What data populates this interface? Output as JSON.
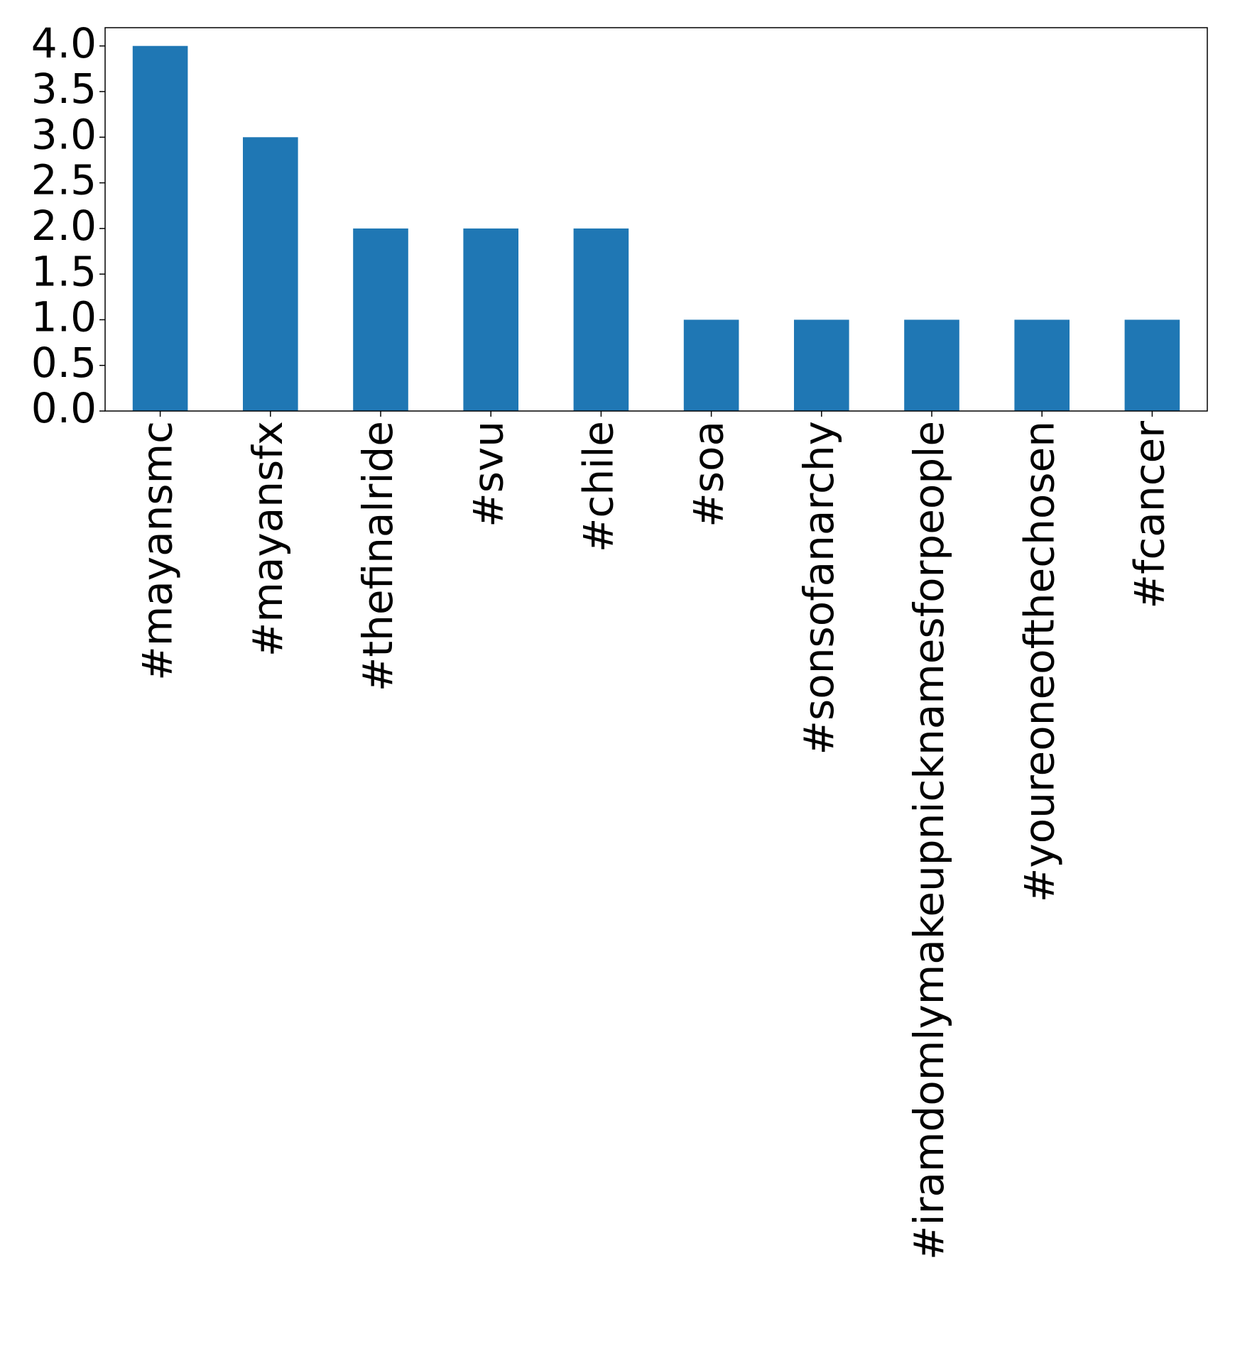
{
  "chart_data": {
    "type": "bar",
    "title": "",
    "xlabel": "",
    "ylabel": "",
    "categories": [
      "#mayansmc",
      "#mayansfx",
      "#thefinalride",
      "#svu",
      "#chile",
      "#soa",
      "#sonsofanarchy",
      "#iramdomlymakeupnicknamesforpeople",
      "#youreoneofthechosen",
      "#fcancer"
    ],
    "values": [
      4,
      3,
      2,
      2,
      2,
      1,
      1,
      1,
      1,
      1
    ],
    "ylim": [
      0,
      4.2
    ],
    "yticks": [
      "0.0",
      "0.5",
      "1.0",
      "1.5",
      "2.0",
      "2.5",
      "3.0",
      "3.5",
      "4.0"
    ],
    "grid": false,
    "legend": "none",
    "bar_color": "#1f77b4"
  }
}
